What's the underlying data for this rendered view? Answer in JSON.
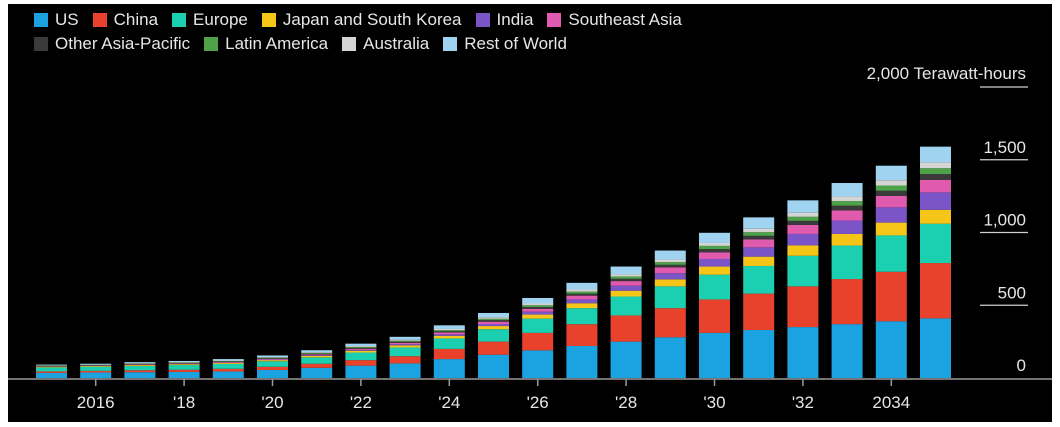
{
  "chart_data": {
    "type": "bar",
    "stacked": true,
    "unit_label": "2,000 Terawatt-hours",
    "ylim": [
      0,
      2000
    ],
    "y_ticks": [
      {
        "value": 0,
        "label": "0"
      },
      {
        "value": 500,
        "label": "500"
      },
      {
        "value": 1000,
        "label": "1,000"
      },
      {
        "value": 1500,
        "label": "1,500"
      }
    ],
    "categories": [
      2015,
      2016,
      2017,
      2018,
      2019,
      2020,
      2021,
      2022,
      2023,
      2024,
      2025,
      2026,
      2027,
      2028,
      2029,
      2030,
      2031,
      2032,
      2033,
      2034,
      2035
    ],
    "x_tick_labels": [
      {
        "category": 2016,
        "label": "2016"
      },
      {
        "category": 2018,
        "label": "'18"
      },
      {
        "category": 2020,
        "label": "'20"
      },
      {
        "category": 2022,
        "label": "'22"
      },
      {
        "category": 2024,
        "label": "'24"
      },
      {
        "category": 2026,
        "label": "'26"
      },
      {
        "category": 2028,
        "label": "'28"
      },
      {
        "category": 2030,
        "label": "'30"
      },
      {
        "category": 2032,
        "label": "'32"
      },
      {
        "category": 2034,
        "label": "2034"
      }
    ],
    "series": [
      {
        "name": "US",
        "color": "#1aa3e0",
        "values": [
          35,
          38,
          40,
          42,
          45,
          55,
          70,
          85,
          100,
          130,
          160,
          190,
          220,
          250,
          280,
          310,
          330,
          350,
          370,
          390,
          410
        ]
      },
      {
        "name": "China",
        "color": "#e8412c",
        "values": [
          10,
          11,
          13,
          15,
          18,
          22,
          28,
          38,
          50,
          70,
          90,
          120,
          150,
          180,
          200,
          230,
          250,
          280,
          310,
          340,
          380
        ]
      },
      {
        "name": "Europe",
        "color": "#1ad0b0",
        "values": [
          28,
          29,
          30,
          32,
          34,
          38,
          44,
          52,
          60,
          72,
          85,
          98,
          110,
          130,
          150,
          170,
          190,
          210,
          230,
          250,
          270
        ]
      },
      {
        "name": "Japan and South Korea",
        "color": "#f5c518",
        "values": [
          5,
          5,
          6,
          6,
          7,
          8,
          10,
          12,
          14,
          18,
          22,
          28,
          34,
          40,
          48,
          56,
          64,
          72,
          80,
          88,
          96
        ]
      },
      {
        "name": "India",
        "color": "#7b55c7",
        "values": [
          1,
          1,
          1,
          2,
          2,
          3,
          4,
          6,
          8,
          10,
          14,
          20,
          26,
          34,
          42,
          52,
          64,
          78,
          92,
          105,
          120
        ]
      },
      {
        "name": "Southeast Asia",
        "color": "#e05aad",
        "values": [
          2,
          2,
          3,
          3,
          4,
          5,
          6,
          8,
          10,
          13,
          16,
          20,
          26,
          32,
          40,
          46,
          54,
          62,
          70,
          78,
          86
        ]
      },
      {
        "name": "Other Asia-Pacific",
        "color": "#3a3a3a",
        "values": [
          2,
          2,
          3,
          3,
          4,
          4,
          5,
          6,
          7,
          8,
          10,
          12,
          14,
          16,
          18,
          22,
          25,
          28,
          32,
          36,
          40
        ]
      },
      {
        "name": "Latin America",
        "color": "#4ea24a",
        "values": [
          2,
          2,
          3,
          3,
          3,
          4,
          5,
          6,
          7,
          8,
          10,
          12,
          14,
          16,
          18,
          22,
          25,
          28,
          32,
          36,
          40
        ]
      },
      {
        "name": "Australia",
        "color": "#d4d4d4",
        "values": [
          2,
          2,
          3,
          3,
          3,
          4,
          5,
          6,
          7,
          8,
          10,
          12,
          14,
          16,
          18,
          20,
          24,
          28,
          32,
          36,
          40
        ]
      },
      {
        "name": "Rest of World",
        "color": "#9fd3f0",
        "values": [
          5,
          6,
          7,
          8,
          10,
          12,
          14,
          17,
          20,
          25,
          30,
          38,
          46,
          52,
          62,
          70,
          78,
          85,
          92,
          100,
          108
        ]
      }
    ]
  }
}
